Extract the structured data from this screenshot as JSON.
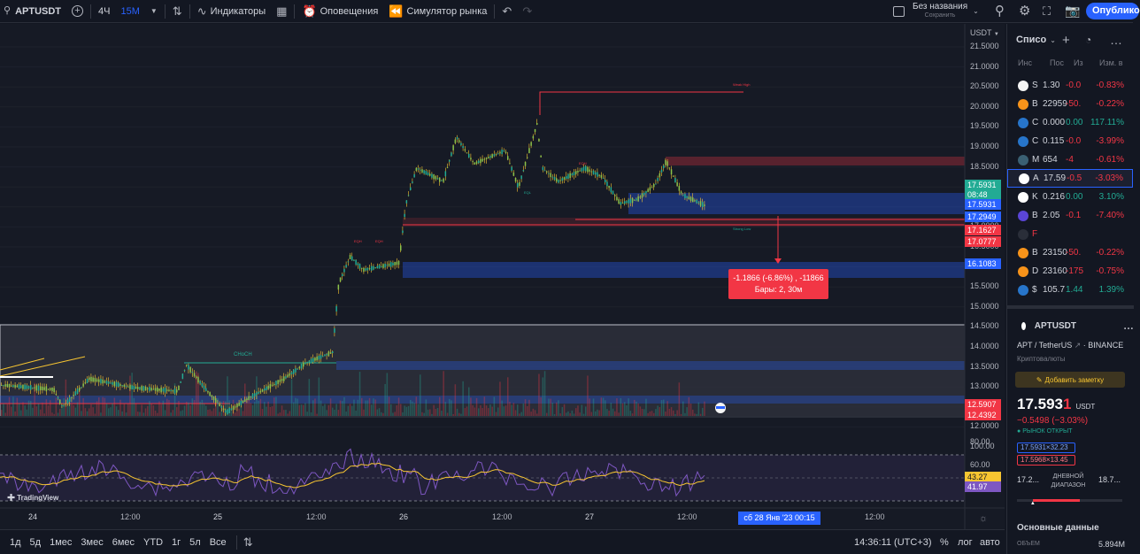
{
  "topbar": {
    "symbol": "APTUSDT",
    "interval1": "4Ч",
    "interval2": "15М",
    "indicators": "Индикаторы",
    "alerts": "Оповещения",
    "replay": "Симулятор рынка",
    "layout_name": "Без названия",
    "layout_status": "Сохранить",
    "publish": "Опублико"
  },
  "chart": {
    "currency": "USDT",
    "price_ticks": [
      "21.5000",
      "21.0000",
      "20.5000",
      "20.0000",
      "19.5000",
      "19.0000",
      "18.5000",
      "18.0000",
      "17.5000",
      "17.0000",
      "16.5000",
      "16.0000",
      "15.5000",
      "15.0000",
      "14.5000",
      "14.0000",
      "13.5000",
      "13.0000",
      "12.5000",
      "12.0000",
      "100.00"
    ],
    "rsi_ticks": [
      "80.00",
      "60.00",
      "40.00"
    ],
    "price_labels": [
      {
        "text": "17.5931",
        "color": "#22ab94"
      },
      {
        "text": "08:48",
        "color": "#22ab94"
      },
      {
        "text": "17.5931",
        "color": "#2962ff"
      },
      {
        "text": "17.2949",
        "color": "#2962ff"
      },
      {
        "text": "17.1627",
        "color": "#f23645"
      },
      {
        "text": "17.0777",
        "color": "#f23645"
      },
      {
        "text": "16.1083",
        "color": "#2962ff"
      },
      {
        "text": "12.5907",
        "color": "#f23645"
      },
      {
        "text": "12.4392",
        "color": "#f23645"
      },
      {
        "text": "43.27",
        "color": "#f7c531"
      },
      {
        "text": "41.97",
        "color": "#7e57c2"
      }
    ],
    "time_ticks": [
      "24",
      "12:00",
      "25",
      "12:00",
      "26",
      "12:00",
      "27",
      "12:00",
      "12:00"
    ],
    "cursor_time": "сб 28 Янв '23   00:15",
    "measure_line1": "-1.1866 (-6.86%) , -11866",
    "measure_line2": "Бары: 2, 30м",
    "annotations": {
      "weak_high": "Weak High",
      "strong_low": "Strong Low",
      "choch": "CHoCH",
      "eqh": "EQH",
      "eql": "EQL"
    },
    "logo": "TradingView"
  },
  "bottombar": {
    "ranges": [
      "1д",
      "5д",
      "1мес",
      "3мес",
      "6мес",
      "YTD",
      "1г",
      "5л",
      "Все"
    ],
    "clock": "14:36:11 (UTC+3)",
    "percent": "%",
    "log": "лог",
    "auto": "авто"
  },
  "watchlist": {
    "title": "Списо",
    "col_symbol": "Инс",
    "col_last": "Пос",
    "col_change": "Из",
    "col_pct": "Изм. в",
    "rows": [
      {
        "sym": "S",
        "price": "1.30",
        "chg": "-0.0",
        "pct": "-0.83%",
        "dir": "red",
        "color": "#f5f5f5"
      },
      {
        "sym": "B",
        "price": "22959",
        "chg": "-50.",
        "pct": "-0.22%",
        "dir": "red",
        "color": "#f7931a"
      },
      {
        "sym": "C",
        "price": "0.000",
        "chg": "0.00",
        "pct": "117.11%",
        "dir": "green",
        "color": "#2775ca"
      },
      {
        "sym": "C",
        "price": "0.115",
        "chg": "-0.0",
        "pct": "-3.99%",
        "dir": "red",
        "color": "#2775ca"
      },
      {
        "sym": "M",
        "price": "654",
        "chg": "-4",
        "pct": "-0.61%",
        "dir": "red",
        "color": "#3a6073"
      },
      {
        "sym": "A",
        "price": "17.59",
        "chg": "-0.5",
        "pct": "-3.03%",
        "dir": "red",
        "color": "#ffffff"
      },
      {
        "sym": "K",
        "price": "0.216",
        "chg": "0.00",
        "pct": "3.10%",
        "dir": "green",
        "color": "#ffffff"
      },
      {
        "sym": "B",
        "price": "2.05",
        "chg": "-0.1",
        "pct": "-7.40%",
        "dir": "red",
        "color": "#5a45d6"
      },
      {
        "sym": "F",
        "price": "",
        "chg": "",
        "pct": "",
        "dir": "red",
        "color": "#2a2e39"
      },
      {
        "sym": "B",
        "price": "23150",
        "chg": "-50.",
        "pct": "-0.22%",
        "dir": "red",
        "color": "#f7931a"
      },
      {
        "sym": "D",
        "price": "23160",
        "chg": "-175",
        "pct": "-0.75%",
        "dir": "red",
        "color": "#f7931a"
      },
      {
        "sym": "$",
        "price": "105.7",
        "chg": "1.44",
        "pct": "1.39%",
        "dir": "green",
        "color": "#2775ca"
      }
    ]
  },
  "details": {
    "symbol": "APTUSDT",
    "name": "APT / TetherUS",
    "exchange": "BINANCE",
    "category": "Криптовалюты",
    "add_note": "Добавить заметку",
    "price_main": "17.593",
    "price_last_digit": "1",
    "currency": "USDT",
    "change": "−0.5498 (−3.03%)",
    "market_status": "РЫНОК ОТКРЫТ",
    "bid": "17.5931×32.23",
    "ask": "17.5968×13.45",
    "range_low": "17.2...",
    "range_label": "ДНЕВНОЙ ДИАПАЗОН",
    "range_high": "18.7...",
    "range_fraction": 0.15,
    "key_data": "Основные данные",
    "volume_label": "ОБЪЕМ",
    "volume_value": "5.894М"
  },
  "colors": {
    "up": "#22ab94",
    "down": "#f23645",
    "accent": "#2962ff",
    "rsi": "#7e57c2",
    "ma": "#f7c531"
  }
}
